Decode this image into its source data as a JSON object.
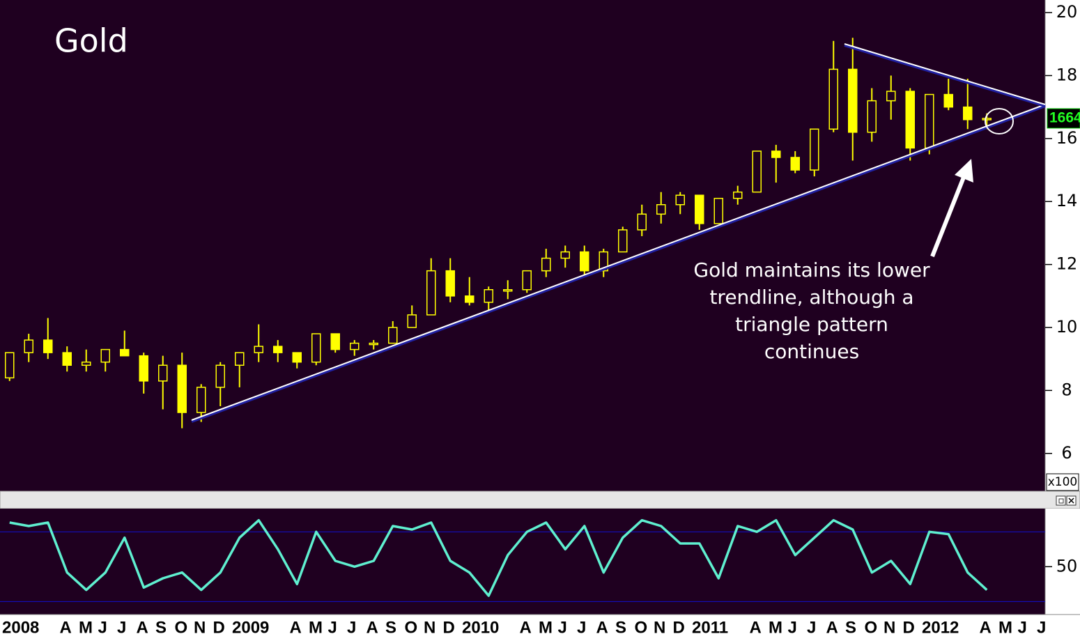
{
  "chart_data": [
    {
      "type": "candlestick",
      "title": "Gold",
      "color": "#ffff00",
      "candles": {
        "open": [
          8.4,
          9.2,
          9.6,
          9.2,
          8.8,
          8.9,
          9.3,
          9.1,
          8.3,
          8.8,
          7.3,
          8.1,
          8.8,
          9.2,
          9.4,
          9.2,
          8.9,
          9.8,
          9.3,
          9.5,
          9.5,
          10.0,
          10.4,
          11.8,
          11.0,
          10.8,
          11.2,
          11.2,
          11.8,
          12.2,
          12.4,
          11.8,
          12.4,
          13.1,
          13.6,
          13.9,
          14.2,
          13.3,
          14.1,
          14.3,
          15.6,
          15.4,
          15.0,
          16.3,
          18.2,
          16.2,
          17.2,
          17.5,
          15.7,
          17.4,
          17.0,
          16.6,
          null,
          null,
          null
        ],
        "high": [
          9.2,
          9.8,
          10.3,
          9.4,
          9.3,
          9.3,
          9.9,
          9.2,
          9.1,
          9.2,
          8.2,
          8.9,
          9.2,
          10.1,
          9.6,
          9.2,
          9.8,
          9.8,
          9.6,
          9.6,
          10.2,
          10.7,
          12.2,
          12.2,
          11.6,
          11.3,
          11.5,
          11.8,
          12.5,
          12.6,
          12.6,
          12.5,
          13.2,
          13.9,
          14.3,
          14.3,
          14.2,
          14.1,
          14.5,
          15.6,
          15.8,
          15.6,
          16.3,
          19.1,
          19.2,
          17.6,
          18.0,
          17.6,
          17.4,
          17.9,
          17.9,
          16.8,
          null,
          null,
          null
        ],
        "low": [
          8.3,
          8.9,
          9.0,
          8.6,
          8.6,
          8.6,
          9.2,
          7.9,
          7.4,
          6.8,
          7.0,
          7.5,
          8.1,
          8.9,
          8.9,
          8.7,
          8.8,
          9.2,
          9.1,
          9.3,
          9.6,
          10.0,
          10.4,
          10.8,
          10.7,
          10.5,
          10.9,
          11.1,
          11.6,
          11.9,
          11.6,
          11.6,
          12.4,
          12.9,
          13.3,
          13.6,
          13.1,
          13.3,
          13.9,
          14.3,
          14.6,
          14.9,
          14.8,
          16.2,
          15.3,
          15.9,
          16.6,
          15.3,
          15.5,
          16.9,
          16.3,
          16.3,
          null,
          null,
          null
        ],
        "close": [
          9.2,
          9.6,
          9.2,
          8.8,
          8.9,
          9.3,
          9.1,
          8.3,
          8.8,
          7.3,
          8.1,
          8.8,
          9.2,
          9.4,
          9.2,
          8.9,
          9.8,
          9.3,
          9.5,
          9.5,
          10.0,
          10.4,
          11.8,
          11.0,
          10.8,
          11.2,
          11.2,
          11.8,
          12.2,
          12.4,
          11.8,
          12.4,
          13.1,
          13.6,
          13.9,
          14.2,
          13.3,
          14.1,
          14.3,
          15.6,
          15.4,
          15.0,
          16.3,
          18.2,
          16.2,
          17.2,
          17.5,
          15.7,
          17.4,
          17.0,
          16.6,
          16.64,
          null,
          null,
          null
        ]
      },
      "ylim": [
        4.8,
        20.4
      ],
      "yticks": [
        6,
        8,
        10,
        12,
        14,
        16,
        18,
        20
      ],
      "unit_label": "x100",
      "last_price": {
        "value": 16.64,
        "label": "1664"
      },
      "annotation": [
        "Gold maintains its lower",
        "trendline, although a",
        "triangle pattern",
        "continues"
      ]
    },
    {
      "type": "line",
      "color": "#5ff0d0",
      "categories": [
        "2008",
        null,
        null,
        "A",
        "M",
        "J",
        "J",
        "A",
        "S",
        "O",
        "N",
        "D",
        "2009",
        null,
        null,
        "A",
        "M",
        "J",
        "J",
        "A",
        "S",
        "O",
        "N",
        "D",
        "2010",
        null,
        null,
        "A",
        "M",
        "J",
        "J",
        "A",
        "S",
        "O",
        "N",
        "D",
        "2011",
        null,
        null,
        "A",
        "M",
        "J",
        "J",
        "A",
        "S",
        "O",
        "N",
        "D",
        "2012",
        null,
        null,
        "A",
        "M",
        "J",
        "J"
      ],
      "values": [
        88,
        85,
        88,
        45,
        30,
        45,
        75,
        32,
        40,
        45,
        30,
        45,
        75,
        90,
        65,
        35,
        80,
        55,
        50,
        55,
        85,
        82,
        88,
        55,
        45,
        25,
        60,
        80,
        88,
        65,
        85,
        45,
        75,
        90,
        85,
        70,
        70,
        40,
        85,
        80,
        90,
        60,
        75,
        90,
        82,
        45,
        55,
        35,
        80,
        78,
        45,
        30,
        null,
        null,
        null
      ],
      "ylim": [
        10,
        100
      ],
      "yticks": [
        50
      ],
      "hlines": [
        20,
        80
      ],
      "hline_color": "#1010d0"
    }
  ]
}
